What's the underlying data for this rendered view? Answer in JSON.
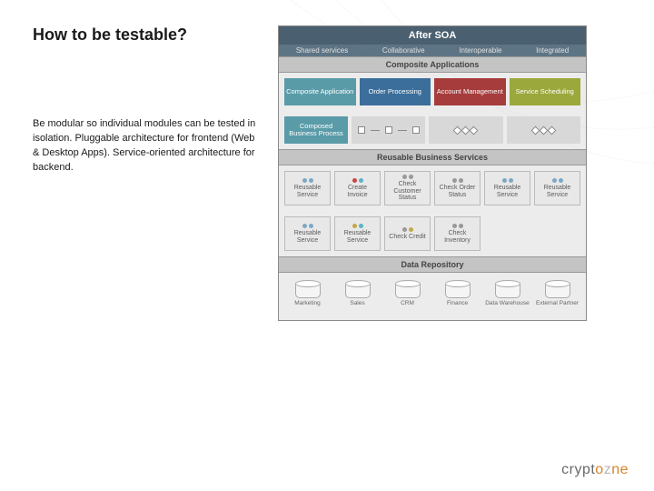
{
  "slide": {
    "title": "How to be testable?",
    "body": "Be modular so individual modules can be tested in isolation. Pluggable architecture for frontend (Web & Desktop Apps). Service-oriented architecture for backend."
  },
  "diagram": {
    "header": "After SOA",
    "sub_items": [
      "Shared services",
      "Collaborative",
      "Interoperable",
      "Integrated"
    ],
    "section_composite": "Composite Applications",
    "composite_row1": [
      {
        "label": "Composite Application",
        "color": "teal"
      },
      {
        "label": "Order Processing",
        "color": "blue"
      },
      {
        "label": "Account Management",
        "color": "red"
      },
      {
        "label": "Service Scheduling",
        "color": "olive"
      }
    ],
    "composed_label": "Composed Business Process",
    "section_reusable": "Reusable Business Services",
    "services_row1": [
      {
        "label": "Reusable Service",
        "dots": [
          "#7da8c4",
          "#7da8c4"
        ]
      },
      {
        "label": "Create Invoice",
        "dots": [
          "#c44",
          "#5bb4c4"
        ]
      },
      {
        "label": "Check Customer Status",
        "dots": [
          "#999",
          "#999"
        ]
      },
      {
        "label": "Check Order Status",
        "dots": [
          "#999",
          "#999"
        ]
      },
      {
        "label": "Reusable Service",
        "dots": [
          "#7da8c4",
          "#7da8c4"
        ]
      },
      {
        "label": "Reusable Service",
        "dots": [
          "#7da8c4",
          "#7da8c4"
        ]
      }
    ],
    "services_row2": [
      {
        "label": "Reusable Service",
        "dots": [
          "#7da8c4",
          "#7da8c4"
        ]
      },
      {
        "label": "Reusable Service",
        "dots": [
          "#c4a84a",
          "#5bb4c4"
        ]
      },
      {
        "label": "Check Credit",
        "dots": [
          "#999",
          "#c4a84a"
        ]
      },
      {
        "label": "Check Inventory",
        "dots": [
          "#999",
          "#999"
        ]
      },
      {
        "label": "",
        "dots": []
      },
      {
        "label": "",
        "dots": []
      }
    ],
    "section_repo": "Data Repository",
    "repos": [
      "Marketing",
      "Sales",
      "CRM",
      "Finance",
      "Data Warehouse",
      "External Partner"
    ]
  },
  "logo": {
    "pre": "crypt",
    "accent": "o",
    "post": "z",
    "tail": "ne"
  },
  "colors": {
    "teal": "#5a9ba8",
    "blue": "#3b6e9b",
    "red": "#a63c3c",
    "olive": "#9ba83c",
    "header": "#4a6070",
    "sub": "#5d7485"
  }
}
